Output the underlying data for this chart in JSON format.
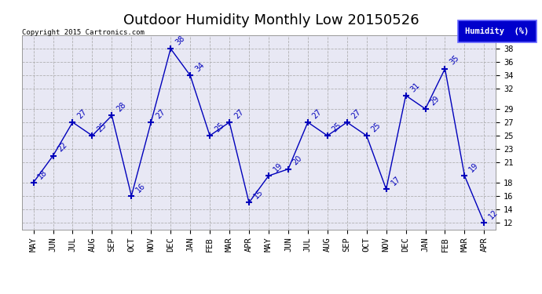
{
  "title": "Outdoor Humidity Monthly Low 20150526",
  "copyright": "Copyright 2015 Cartronics.com",
  "legend_label": "Humidity  (%)",
  "categories": [
    "MAY",
    "JUN",
    "JUL",
    "AUG",
    "SEP",
    "OCT",
    "NOV",
    "DEC",
    "JAN",
    "FEB",
    "MAR",
    "APR",
    "MAY",
    "JUN",
    "JUL",
    "AUG",
    "SEP",
    "OCT",
    "NOV",
    "DEC",
    "JAN",
    "FEB",
    "MAR",
    "APR"
  ],
  "values": [
    18,
    22,
    27,
    25,
    28,
    16,
    27,
    38,
    34,
    25,
    27,
    15,
    19,
    20,
    27,
    25,
    27,
    25,
    17,
    31,
    29,
    35,
    19,
    12
  ],
  "line_color": "#0000bb",
  "marker_color": "#0000bb",
  "bg_color": "#ffffff",
  "plot_bg_color": "#e8e8f4",
  "title_color": "#000000",
  "legend_bg": "#0000cc",
  "legend_text_color": "#ffffff",
  "copyright_color": "#000000",
  "ylim_min": 11,
  "ylim_max": 40,
  "yticks": [
    12,
    14,
    16,
    18,
    21,
    23,
    25,
    27,
    29,
    32,
    34,
    36,
    38
  ],
  "title_fontsize": 13,
  "label_fontsize": 7,
  "tick_fontsize": 7.5
}
